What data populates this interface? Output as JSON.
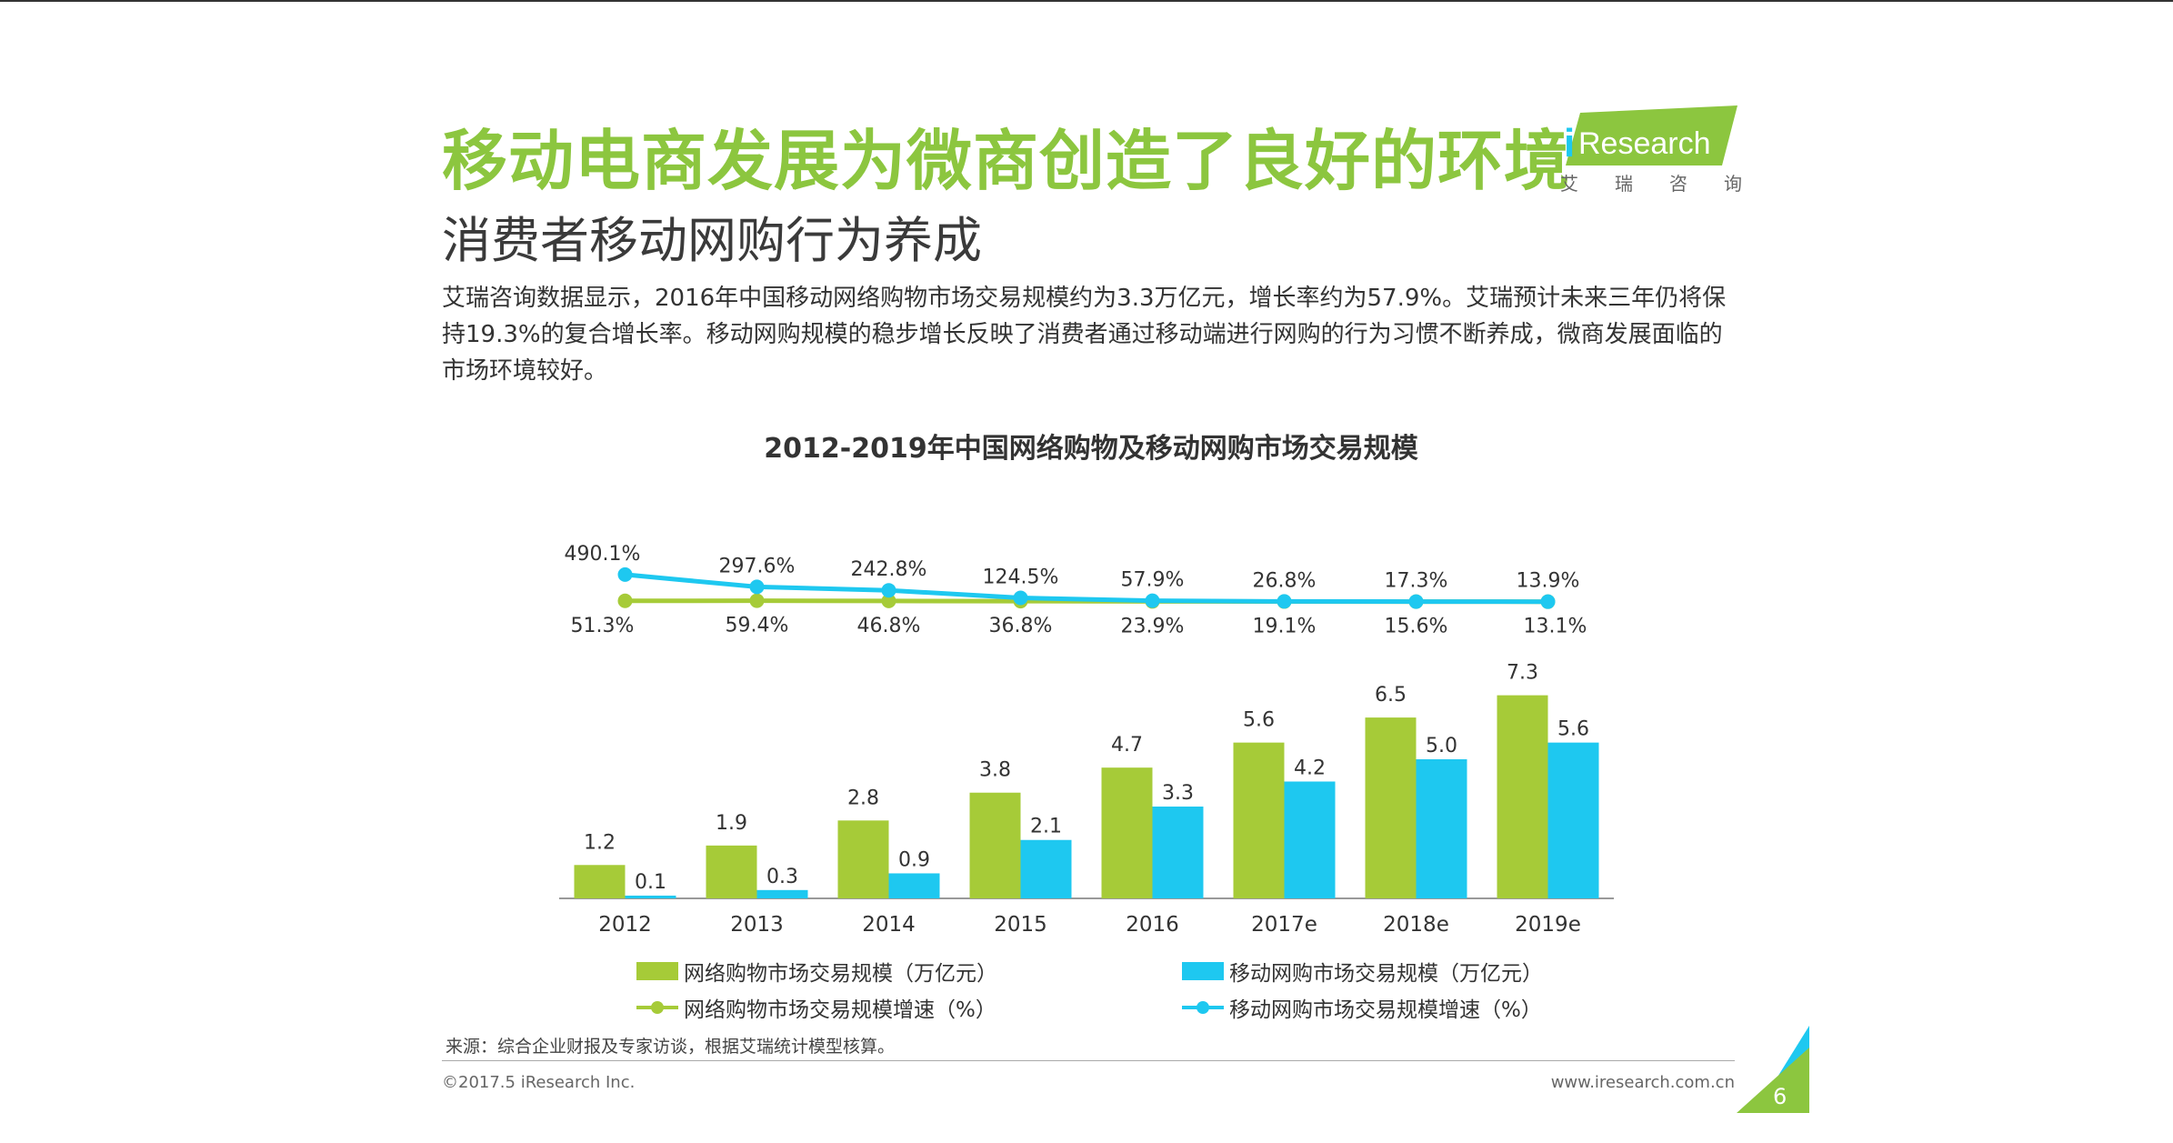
{
  "slide": {
    "title": "移动电商发展为微商创造了良好的环境",
    "subtitle": "消费者移动网购行为养成",
    "paragraph": "艾瑞咨询数据显示，2016年中国移动网络购物市场交易规模约为3.3万亿元，增长率约为57.9%。艾瑞预计未来三年仍将保持19.3%的复合增长率。移动网购规模的稳步增长反映了消费者通过移动端进行网购的行为习惯不断养成，微商发展面临的市场环境较好。",
    "source": "来源：综合企业财报及专家访谈，根据艾瑞统计模型核算。",
    "copyright": "©2017.5 iResearch Inc.",
    "website": "www.iresearch.com.cn",
    "page_number": "6"
  },
  "logo": {
    "text_i": "i",
    "text_rest": "Research",
    "cn_chars": [
      "艾",
      "瑞",
      "咨",
      "询"
    ],
    "color_green": "#8cc63f",
    "color_blue": "#1ec8f0"
  },
  "colors": {
    "green": "#a6cb38",
    "blue": "#1ec8f0",
    "title_green": "#8cc63f",
    "axis": "#999999"
  },
  "chart_data": {
    "type": "bar",
    "title": "2012-2019年中国网络购物及移动网购市场交易规模",
    "categories": [
      "2012",
      "2013",
      "2014",
      "2015",
      "2016",
      "2017e",
      "2018e",
      "2019e"
    ],
    "series": [
      {
        "name": "网络购物市场交易规模（万亿元）",
        "type": "bar",
        "values": [
          1.2,
          1.9,
          2.8,
          3.8,
          4.7,
          5.6,
          6.5,
          7.3
        ],
        "labels": [
          "1.2",
          "1.9",
          "2.8",
          "3.8",
          "4.7",
          "5.6",
          "6.5",
          "7.3"
        ]
      },
      {
        "name": "移动网购市场交易规模（万亿元）",
        "type": "bar",
        "values": [
          0.1,
          0.3,
          0.9,
          2.1,
          3.3,
          4.2,
          5.0,
          5.6
        ],
        "labels": [
          "0.1",
          "0.3",
          "0.9",
          "2.1",
          "3.3",
          "4.2",
          "5.0",
          "5.6"
        ]
      },
      {
        "name": "网络购物市场交易规模增速（%）",
        "type": "line",
        "values": [
          51.3,
          59.4,
          46.8,
          36.8,
          23.9,
          19.1,
          15.6,
          13.1
        ],
        "labels": [
          "51.3%",
          "59.4%",
          "46.8%",
          "36.8%",
          "23.9%",
          "19.1%",
          "15.6%",
          "13.1%"
        ]
      },
      {
        "name": "移动网购市场交易规模增速（%）",
        "type": "line",
        "values": [
          490.1,
          297.6,
          242.8,
          124.5,
          57.9,
          26.8,
          17.3,
          13.9
        ],
        "labels": [
          "490.1%",
          "297.6%",
          "242.8%",
          "124.5%",
          "57.9%",
          "26.8%",
          "17.3%",
          "13.9%"
        ]
      }
    ],
    "legend_position": "bottom",
    "grid": false
  }
}
